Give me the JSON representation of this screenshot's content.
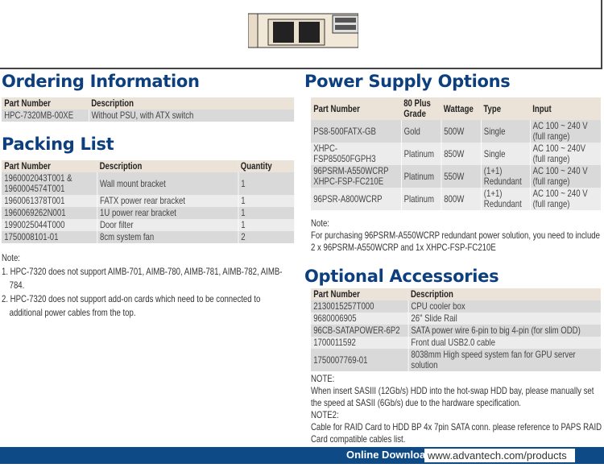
{
  "ordering": {
    "title": "Ordering Information",
    "headers": [
      "Part Number",
      "Description"
    ],
    "rows": [
      [
        "HPC-7320MB-00XE",
        "Without PSU, with ATX switch"
      ]
    ]
  },
  "packing": {
    "title": "Packing List",
    "headers": [
      "Part Number",
      "Description",
      "Quantity"
    ],
    "rows": [
      [
        "1960002043T001 & 1960004574T001",
        "Wall mount bracket",
        "1"
      ],
      [
        "1960061378T001",
        "FATX power rear bracket",
        "1"
      ],
      [
        "1960069262N001",
        "1U power rear bracket",
        "1"
      ],
      [
        "1990025044T000",
        "Door filter",
        "1"
      ],
      [
        "1750008101-01",
        "8cm system fan",
        "2"
      ]
    ],
    "note_label": "Note:",
    "notes": [
      "1. HPC-7320 does not support AIMB-701, AIMB-780, AIMB-781, AIMB-782, AIMB-784.",
      "2. HPC-7320 does not support add-on cards which need to be connected to additional power cables from the top."
    ]
  },
  "psu": {
    "title": "Power Supply Options",
    "headers": [
      "Part Number",
      "80 Plus Grade",
      "Wattage",
      "Type",
      "Input"
    ],
    "rows": [
      [
        "PS8-500FATX-GB",
        "Gold",
        "500W",
        "Single",
        "AC 100 ~ 240 V (full range)"
      ],
      [
        "XHPC-FSP85050FGPH3",
        "Platinum",
        "850W",
        "Single",
        "AC 100 ~ 240V (full range)"
      ],
      [
        "96PSRM-A550WCRP XHPC-FSP-FC210E",
        "Platinum",
        "550W",
        "(1+1) Redundant",
        "AC 100 ~ 240 V (full range)"
      ],
      [
        "96PSR-A800WCRP",
        "Platinum",
        "800W",
        "(1+1) Redundant",
        "AC 100 ~ 240 V (full range)"
      ]
    ],
    "note_label": "Note:",
    "note": "For purchasing 96PSRM-A550WCRP redundant power solution, you need to include 2 x 96PSRM-A550WCRP and 1x XHPC-FSP-FC210E"
  },
  "accessories": {
    "title": "Optional Accessories",
    "headers": [
      "Part Number",
      "Description"
    ],
    "rows": [
      [
        "2130015257T000",
        "CPU cooler box"
      ],
      [
        "9680006905",
        "26\" Slide Rail"
      ],
      [
        "96CB-SATAPOWER-6P2",
        "SATA power wire 6-pin to big 4-pin (for slim ODD)"
      ],
      [
        "1700011592",
        "Front dual USB2.0 cable"
      ],
      [
        "1750007769-01",
        "8038mm High speed system fan for GPU server solution"
      ]
    ],
    "note1_label": "NOTE:",
    "note1": "When insert SASIII  (12Gb/s) HDD into the hot-swap HDD bay, please manually set the speed at SASII (6Gb/s) due to the hardware specification.",
    "note2_label": "NOTE2:",
    "note2": "Cable for RAID Card to HDD BP 4x 7pin SATA conn. please reference to PAPS RAID Card compatible cables list."
  },
  "footer": {
    "label": "Online Download",
    "url": "www.advantech.com/products"
  },
  "colors": {
    "heading": "#0d3f7e",
    "header_bg": "#ece3d8",
    "footer": "#0d4a86"
  }
}
